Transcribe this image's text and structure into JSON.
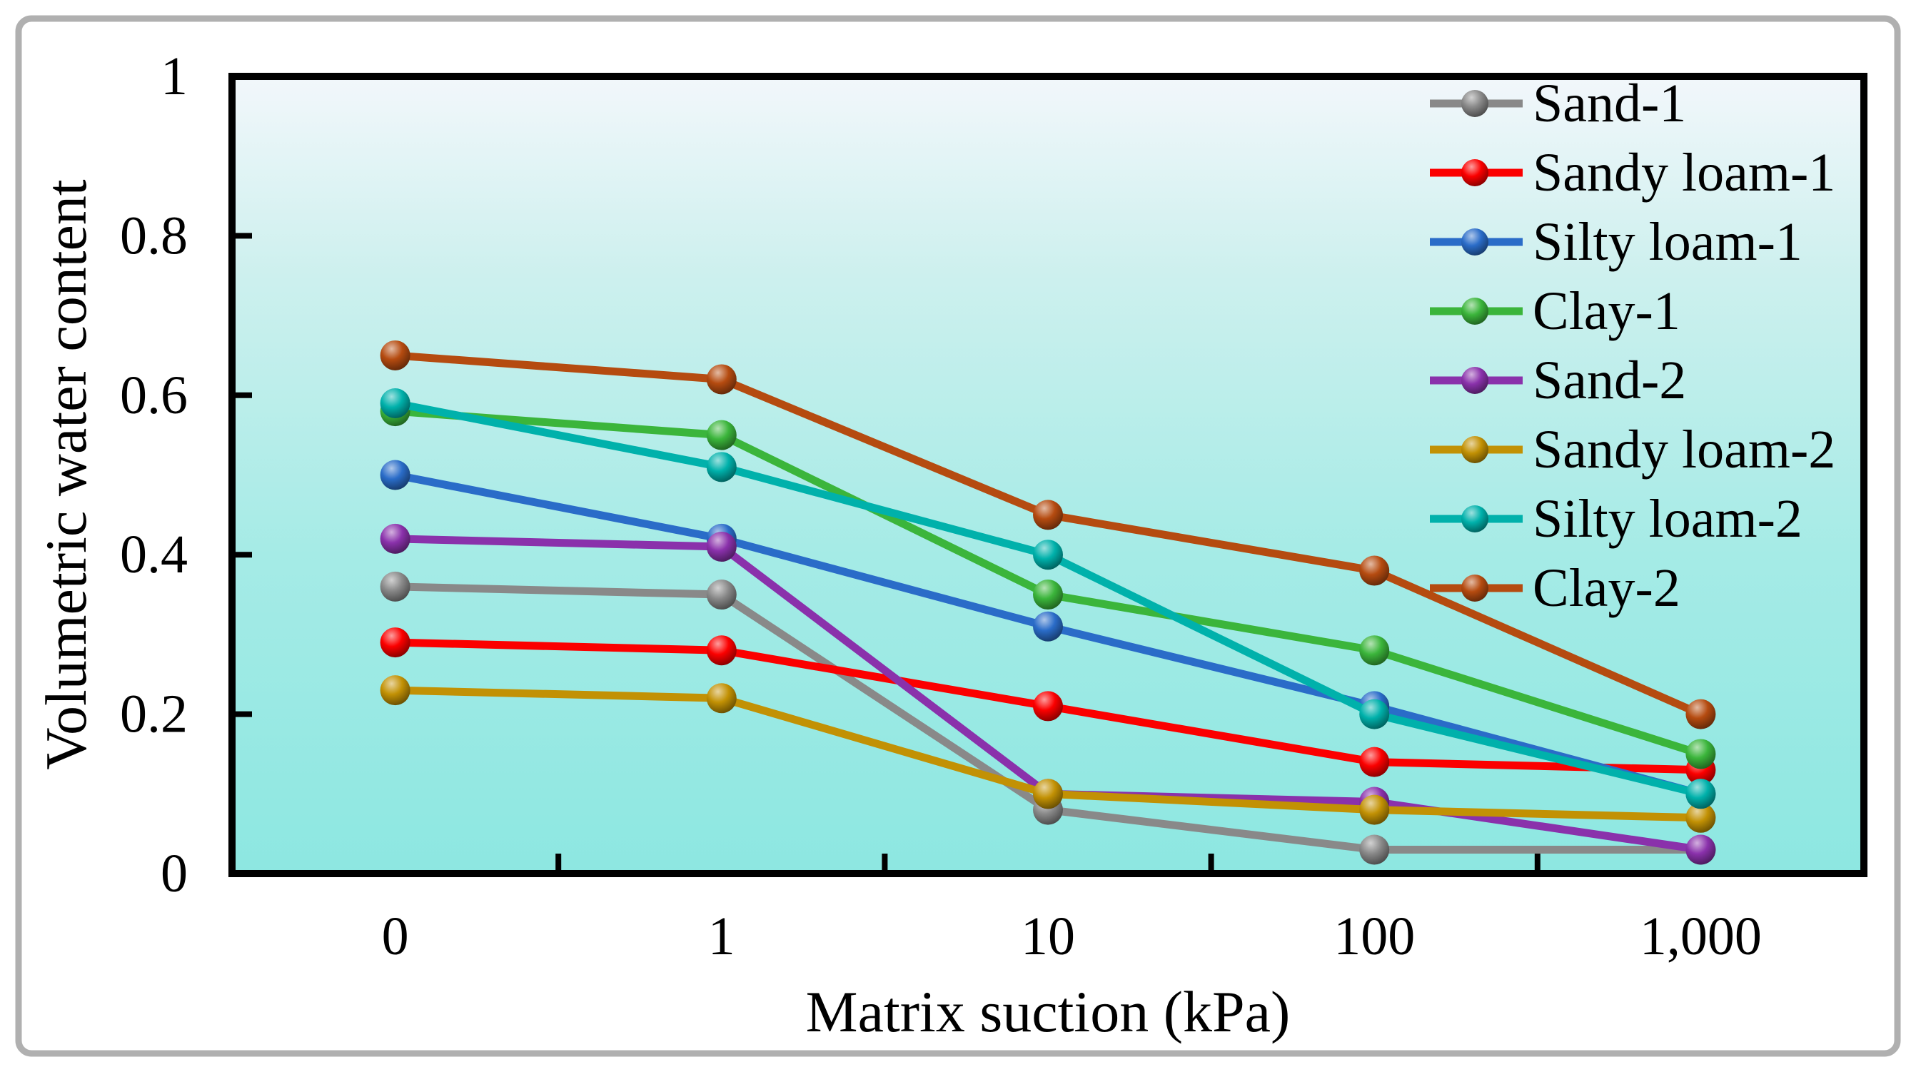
{
  "figure": {
    "background": "#ffffff",
    "outer_border_color": "#b0b0b0"
  },
  "chart_data": {
    "type": "line",
    "title": "",
    "xlabel": "Matrix suction (kPa)",
    "ylabel": "Volumetric water content",
    "x_axis_type": "category",
    "categories": [
      "0",
      "1",
      "10",
      "100",
      "1,000"
    ],
    "ylim": [
      0,
      1
    ],
    "yticks": [
      0,
      0.2,
      0.4,
      0.6,
      0.8,
      1
    ],
    "ytick_labels": [
      "0",
      "0.2",
      "0.4",
      "0.6",
      "0.8",
      "1"
    ],
    "grid": false,
    "legend_position": "top-right-inside",
    "plot_border_color": "#000000",
    "plot_bg_gradient": [
      "#f2f7fb",
      "#cdf0ee",
      "#a5ebe6",
      "#8de7e1"
    ],
    "marker_style": "3d-sphere",
    "series": [
      {
        "name": "Sand-1",
        "color": "#898989",
        "values": [
          0.36,
          0.35,
          0.08,
          0.03,
          0.03
        ]
      },
      {
        "name": "Sandy loam-1",
        "color": "#fb0000",
        "values": [
          0.29,
          0.28,
          0.21,
          0.14,
          0.13
        ]
      },
      {
        "name": "Silty loam-1",
        "color": "#2a6cc8",
        "values": [
          0.5,
          0.42,
          0.31,
          0.21,
          0.1
        ]
      },
      {
        "name": "Clay-1",
        "color": "#3bb53b",
        "values": [
          0.58,
          0.55,
          0.35,
          0.28,
          0.15
        ]
      },
      {
        "name": "Sand-2",
        "color": "#8a31ab",
        "values": [
          0.42,
          0.41,
          0.1,
          0.09,
          0.03
        ]
      },
      {
        "name": "Sandy loam-2",
        "color": "#c29104",
        "values": [
          0.23,
          0.22,
          0.1,
          0.08,
          0.07
        ]
      },
      {
        "name": "Silty loam-2",
        "color": "#00b1ab",
        "values": [
          0.59,
          0.51,
          0.4,
          0.2,
          0.1
        ]
      },
      {
        "name": "Clay-2",
        "color": "#b54b10",
        "values": [
          0.65,
          0.62,
          0.45,
          0.38,
          0.2
        ]
      }
    ]
  }
}
